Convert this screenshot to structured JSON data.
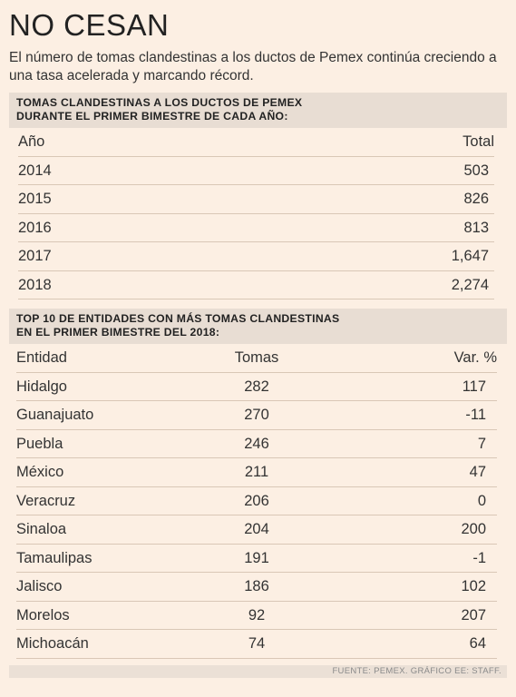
{
  "title": "NO CESAN",
  "subtitle": "El número de tomas clandestinas a los ductos de Pemex continúa creciendo a una tasa acelerada y marcando récord.",
  "table1": {
    "heading_line1": "TOMAS CLANDESTINAS A LOS DUCTOS DE PEMEX",
    "heading_line2": "DURANTE EL PRIMER BIMESTRE DE CADA AÑO:",
    "col_year": "Año",
    "col_total": "Total",
    "rows": [
      {
        "year": "2014",
        "total": "503"
      },
      {
        "year": "2015",
        "total": "826"
      },
      {
        "year": "2016",
        "total": "813"
      },
      {
        "year": "2017",
        "total": "1,647"
      },
      {
        "year": "2018",
        "total": "2,274"
      }
    ]
  },
  "table2": {
    "heading_line1": "TOP 10 DE ENTIDADES CON MÁS TOMAS CLANDESTINAS",
    "heading_line2": "EN EL PRIMER BIMESTRE DEL 2018:",
    "col_entity": "Entidad",
    "col_tomas": "Tomas",
    "col_var": "Var. %",
    "rows": [
      {
        "entity": "Hidalgo",
        "tomas": "282",
        "var": "117"
      },
      {
        "entity": "Guanajuato",
        "tomas": "270",
        "var": "-11"
      },
      {
        "entity": "Puebla",
        "tomas": "246",
        "var": "7"
      },
      {
        "entity": "México",
        "tomas": "211",
        "var": "47"
      },
      {
        "entity": "Veracruz",
        "tomas": "206",
        "var": "0"
      },
      {
        "entity": "Sinaloa",
        "tomas": "204",
        "var": "200"
      },
      {
        "entity": "Tamaulipas",
        "tomas": "191",
        "var": "-1"
      },
      {
        "entity": "Jalisco",
        "tomas": "186",
        "var": "102"
      },
      {
        "entity": "Morelos",
        "tomas": "92",
        "var": "207"
      },
      {
        "entity": "Michoacán",
        "tomas": "74",
        "var": "64"
      }
    ]
  },
  "footer": "FUENTE: PEMEX. GRÁFICO EE: STAFF."
}
